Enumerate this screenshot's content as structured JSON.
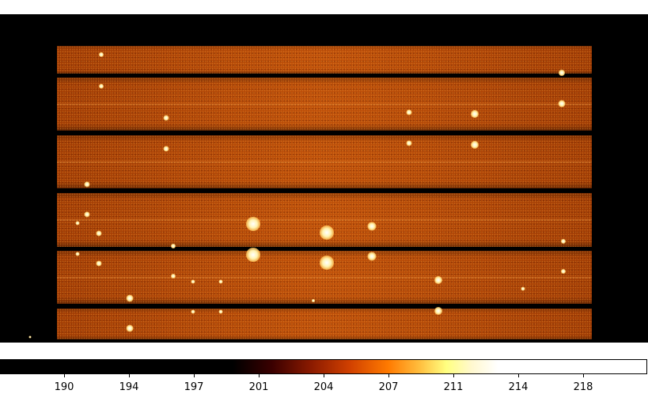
{
  "colormap": "afmhot",
  "colorbar": {
    "ticks": [
      "190",
      "194",
      "197",
      "201",
      "204",
      "207",
      "211",
      "214",
      "218"
    ]
  }
}
